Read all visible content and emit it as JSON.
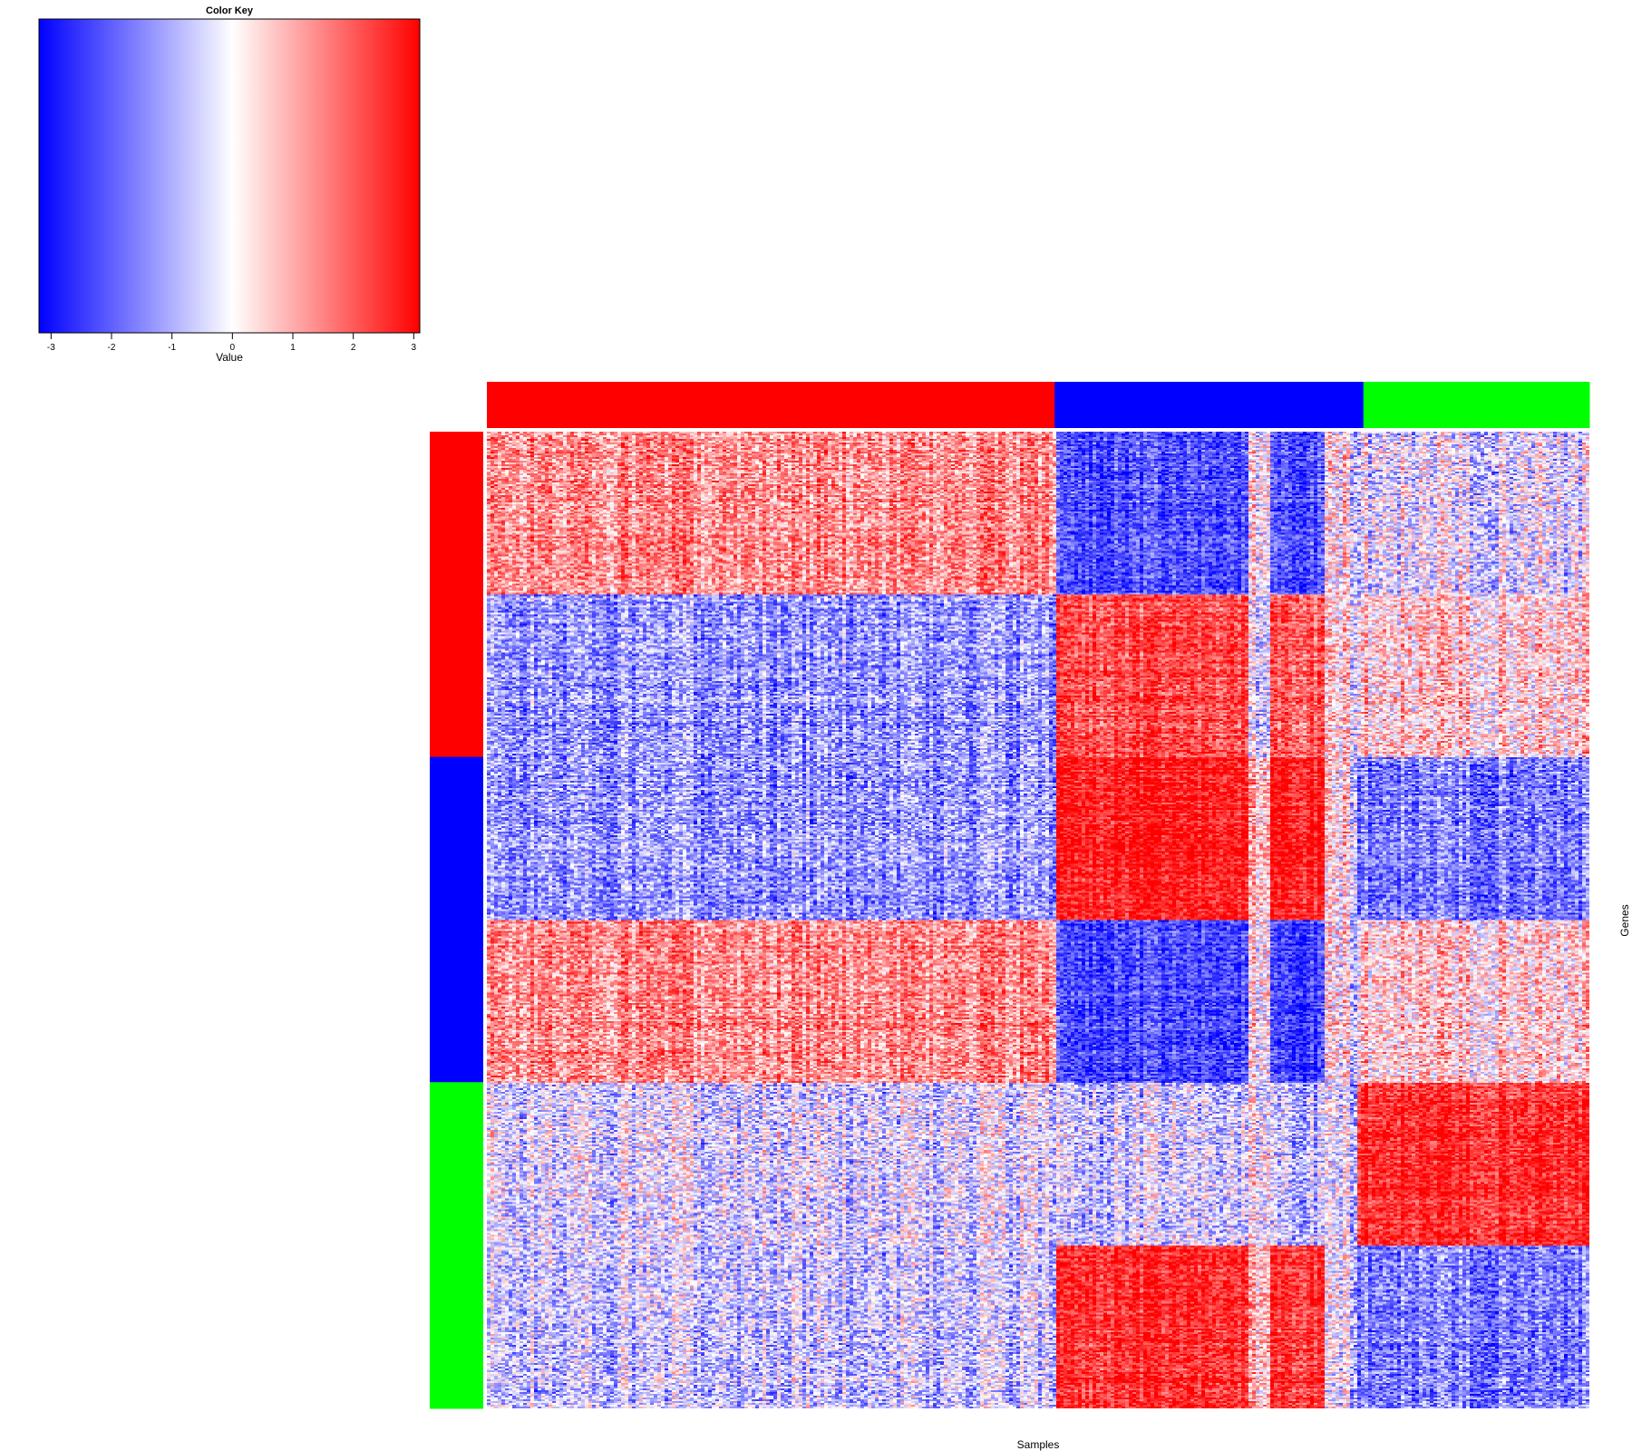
{
  "chart_data": {
    "type": "heatmap",
    "xlabel": "Samples",
    "ylabel": "Genes",
    "color_key": {
      "title": "Color Key",
      "label": "Value",
      "range": [
        -3.2,
        3.1
      ],
      "ticks": [
        -3,
        -2,
        -1,
        0,
        1,
        2,
        3
      ],
      "tick_labels": [
        "-3",
        "-2",
        "-1",
        "0",
        "1",
        "2",
        "3"
      ],
      "colors": {
        "low": "#0000ff",
        "mid": "#ffffff",
        "high": "#ff0000"
      }
    },
    "sample_groups": [
      {
        "name": "group-red",
        "color": "#ff0000",
        "fraction": 0.515
      },
      {
        "name": "group-blue",
        "color": "#0000ff",
        "fraction": 0.28
      },
      {
        "name": "group-green",
        "color": "#00ff00",
        "fraction": 0.205
      }
    ],
    "gene_groups": [
      {
        "name": "group-red",
        "color": "#ff0000",
        "fraction": 0.333
      },
      {
        "name": "group-blue",
        "color": "#0000ff",
        "fraction": 0.333
      },
      {
        "name": "group-green",
        "color": "#00ff00",
        "fraction": 0.334
      }
    ],
    "blocks": {
      "description": "Mean z-scored value per (gene sub-cluster, sample sub-cluster) block; rows are six gene sub-clusters top-to-bottom, columns are sample sub-clusters left-to-right",
      "column_fractions": [
        0.515,
        0.175,
        0.02,
        0.05,
        0.03,
        0.21
      ],
      "row_fractions": [
        0.167,
        0.166,
        0.167,
        0.166,
        0.167,
        0.167
      ],
      "values": [
        [
          1.4,
          -2.2,
          0.2,
          -2.2,
          0.0,
          -0.2
        ],
        [
          -1.3,
          2.2,
          -0.3,
          2.0,
          0.3,
          0.6
        ],
        [
          -1.3,
          2.8,
          0.8,
          2.8,
          0.2,
          -1.6
        ],
        [
          1.4,
          -2.3,
          0.2,
          -2.4,
          0.0,
          0.6
        ],
        [
          -0.4,
          -0.6,
          0.0,
          -0.8,
          -0.4,
          2.6
        ],
        [
          -0.7,
          2.5,
          0.8,
          2.4,
          -0.3,
          -1.6
        ]
      ]
    }
  }
}
